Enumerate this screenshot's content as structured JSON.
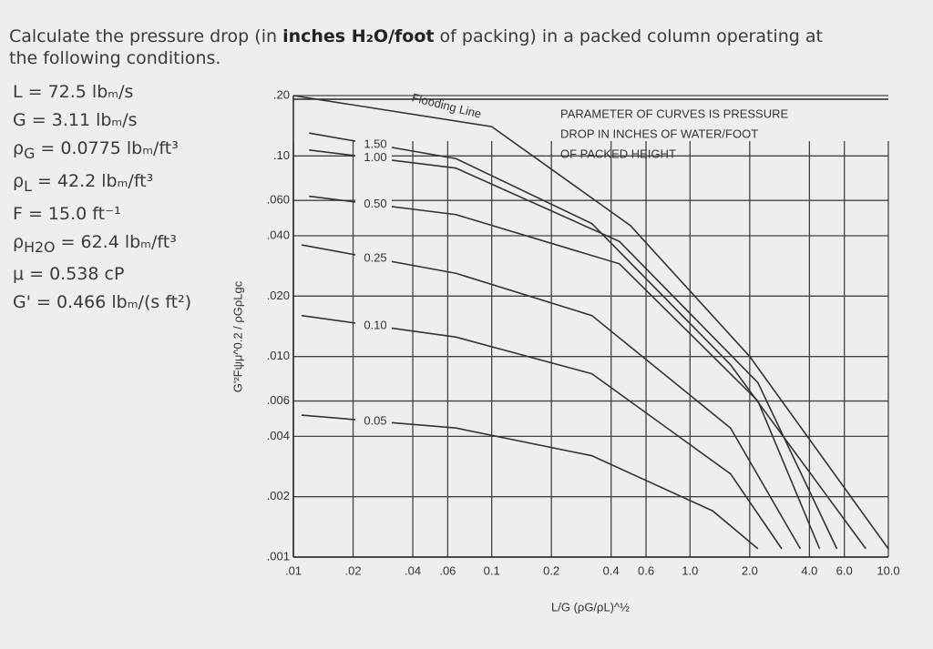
{
  "problem": {
    "intro": "Calculate the pressure drop (in ",
    "emphasis": "inches H₂O/foot",
    "rest": " of packing) in a packed column operating at the following conditions.",
    "conditions": [
      {
        "symbol": "L",
        "rest": " = 72.5 lbₘ/s"
      },
      {
        "symbol": "G",
        "rest": " = 3.11 lbₘ/s"
      },
      {
        "symbol": "ρ",
        "sub": "G",
        "rest": " = 0.0775 lbₘ/ft³"
      },
      {
        "symbol": "ρ",
        "sub": "L",
        "rest": " = 42.2 lbₘ/ft³"
      },
      {
        "symbol": "F",
        "rest": " = 15.0 ft⁻¹"
      },
      {
        "symbol": "ρ",
        "sub": "H2O",
        "rest": " = 62.4 lbₘ/ft³"
      },
      {
        "symbol": "μ",
        "rest": " = 0.538 cP"
      },
      {
        "symbol": "G'",
        "rest": " = 0.466 lbₘ/(s ft²)"
      }
    ]
  },
  "chart_data": {
    "type": "line",
    "x_label": "L/G (ρG/ρL)^½",
    "y_label": "G'²Fψμ^0.2 / ρGρLgc",
    "note": [
      "PARAMETER OF CURVES IS PRESSURE",
      "DROP IN INCHES OF WATER/FOOT",
      "OF PACKED HEIGHT"
    ],
    "x_scale": "log",
    "y_scale": "log",
    "grid": true,
    "xlim": [
      0.01,
      10
    ],
    "ylim": [
      0.001,
      0.2
    ],
    "xticks": [
      {
        "value": 0.01,
        "label": ".01"
      },
      {
        "value": 0.02,
        "label": ".02"
      },
      {
        "value": 0.04,
        "label": ".04"
      },
      {
        "value": 0.06,
        "label": ".06"
      },
      0.1,
      0.2,
      0.4,
      0.6,
      {
        "value": 1,
        "label": "1.0"
      },
      {
        "value": 2,
        "label": "2.0"
      },
      {
        "value": 4,
        "label": "4.0"
      },
      {
        "value": 6,
        "label": "6.0"
      },
      {
        "value": 10,
        "label": "10.0"
      }
    ],
    "yticks": [
      {
        "value": 0.001,
        "label": ".001"
      },
      {
        "value": 0.002,
        "label": ".002"
      },
      {
        "value": 0.004,
        "label": ".004"
      },
      {
        "value": 0.006,
        "label": ".006"
      },
      {
        "value": 0.01,
        "label": ".010"
      },
      {
        "value": 0.02,
        "label": ".020"
      },
      {
        "value": 0.04,
        "label": ".040"
      },
      {
        "value": 0.06,
        "label": ".060"
      },
      {
        "value": 0.1,
        "label": ".10"
      },
      {
        "value": 0.2,
        "label": ".20"
      }
    ],
    "series": [
      {
        "name": "Flooding Line",
        "color": "#333333",
        "x": [
          0.01,
          0.1,
          0.5,
          2,
          10
        ],
        "values": [
          0.2,
          0.14,
          0.045,
          0.01,
          0.0011
        ]
      },
      {
        "name": "1.50",
        "color": "#333333",
        "x": [
          0.012,
          0.066,
          0.32,
          1.6,
          7.7
        ],
        "values": [
          0.13,
          0.097,
          0.046,
          0.0091,
          0.0011
        ]
      },
      {
        "name": "1.00",
        "color": "#333333",
        "x": [
          0.012,
          0.066,
          0.44,
          2.2,
          5.5
        ],
        "values": [
          0.107,
          0.087,
          0.0375,
          0.0074,
          0.0011
        ]
      },
      {
        "name": "0.50",
        "color": "#333333",
        "x": [
          0.012,
          0.066,
          0.44,
          2.2,
          4.5
        ],
        "values": [
          0.063,
          0.051,
          0.029,
          0.006,
          0.0011
        ]
      },
      {
        "name": "0.25",
        "color": "#333333",
        "x": [
          0.011,
          0.066,
          0.32,
          1.6,
          3.6
        ],
        "values": [
          0.036,
          0.026,
          0.016,
          0.0044,
          0.0011
        ]
      },
      {
        "name": "0.10",
        "color": "#333333",
        "x": [
          0.011,
          0.066,
          0.32,
          1.6,
          2.9
        ],
        "values": [
          0.016,
          0.0125,
          0.0082,
          0.0026,
          0.0011
        ]
      },
      {
        "name": "0.05",
        "color": "#333333",
        "x": [
          0.011,
          0.066,
          0.32,
          1.3,
          2.2
        ],
        "values": [
          0.0051,
          0.0044,
          0.0032,
          0.0017,
          0.0011
        ]
      }
    ]
  }
}
